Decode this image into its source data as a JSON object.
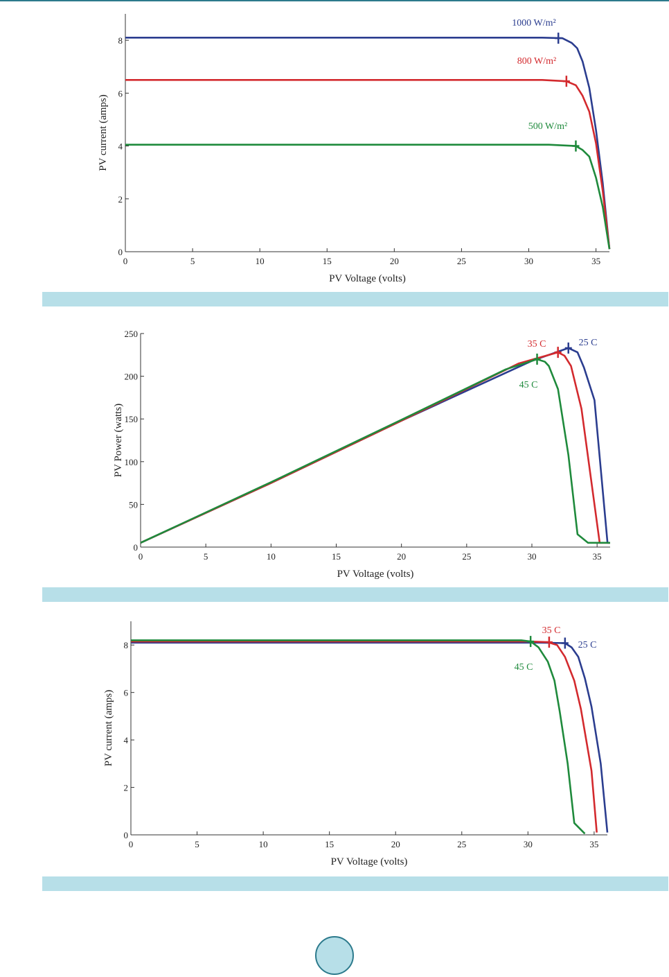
{
  "page": {
    "band_color": "#b7dfe8",
    "rule_color": "#2c7a8c"
  },
  "chart_data": [
    {
      "type": "line",
      "xlabel": "PV Voltage (volts)",
      "ylabel": "PV current (amps)",
      "xlim": [
        0,
        36
      ],
      "ylim": [
        0,
        9
      ],
      "xticks": [
        0,
        5,
        10,
        15,
        20,
        25,
        30,
        35
      ],
      "yticks": [
        0,
        2,
        4,
        6,
        8
      ],
      "series": [
        {
          "name": "1000 W/m²",
          "color": "#2b3d8f",
          "points": [
            [
              0,
              8.1
            ],
            [
              31,
              8.1
            ],
            [
              32.5,
              8.08
            ],
            [
              33.2,
              7.9
            ],
            [
              33.6,
              7.7
            ],
            [
              34,
              7.2
            ],
            [
              34.5,
              6.2
            ],
            [
              35,
              4.6
            ],
            [
              35.5,
              2.6
            ],
            [
              36,
              0.1
            ]
          ],
          "mpp": [
            32.2,
            8.08
          ]
        },
        {
          "name": "800 W/m²",
          "color": "#d32a2e",
          "points": [
            [
              0,
              6.5
            ],
            [
              31,
              6.5
            ],
            [
              32.8,
              6.45
            ],
            [
              33.5,
              6.3
            ],
            [
              34,
              5.9
            ],
            [
              34.5,
              5.3
            ],
            [
              35,
              4.1
            ],
            [
              35.5,
              2.3
            ],
            [
              36,
              0.1
            ]
          ],
          "mpp": [
            32.8,
            6.45
          ]
        },
        {
          "name": "500 W/m²",
          "color": "#1f8a3c",
          "points": [
            [
              0,
              4.05
            ],
            [
              31.5,
              4.05
            ],
            [
              33.5,
              4.0
            ],
            [
              34,
              3.85
            ],
            [
              34.5,
              3.6
            ],
            [
              35,
              2.8
            ],
            [
              35.5,
              1.7
            ],
            [
              36,
              0.1
            ]
          ],
          "mpp": [
            33.5,
            4.0
          ]
        }
      ]
    },
    {
      "type": "line",
      "xlabel": "PV Voltage (volts)",
      "ylabel": "PV Power (watts)",
      "xlim": [
        0,
        36
      ],
      "ylim": [
        0,
        250
      ],
      "xticks": [
        0,
        5,
        10,
        15,
        20,
        25,
        30,
        35
      ],
      "yticks": [
        0,
        50,
        100,
        150,
        200,
        250
      ],
      "series": [
        {
          "name": "25 C",
          "color": "#2b3d8f",
          "points": [
            [
              0,
              5
            ],
            [
              10,
              75
            ],
            [
              20,
              148
            ],
            [
              30,
              218
            ],
            [
              32.8,
              233
            ],
            [
              33.5,
              228
            ],
            [
              34,
              210
            ],
            [
              34.8,
              172
            ],
            [
              35.8,
              5
            ],
            [
              36,
              5
            ]
          ],
          "mpp": [
            32.8,
            233
          ]
        },
        {
          "name": "35 C",
          "color": "#d32a2e",
          "points": [
            [
              0,
              5
            ],
            [
              10,
              75
            ],
            [
              20,
              148
            ],
            [
              29,
              215
            ],
            [
              32,
              228
            ],
            [
              32.5,
              224
            ],
            [
              33,
              212
            ],
            [
              33.8,
              162
            ],
            [
              35.2,
              5
            ],
            [
              36,
              5
            ]
          ],
          "mpp": [
            32.0,
            228
          ]
        },
        {
          "name": "45 C",
          "color": "#1f8a3c",
          "points": [
            [
              0,
              5
            ],
            [
              10,
              76
            ],
            [
              20,
              149
            ],
            [
              28,
              208
            ],
            [
              30.4,
              220
            ],
            [
              31,
              217
            ],
            [
              31.3,
              212
            ],
            [
              32,
              185
            ],
            [
              32.8,
              108
            ],
            [
              33.5,
              15
            ],
            [
              34.3,
              5
            ],
            [
              36,
              5
            ]
          ],
          "mpp": [
            30.4,
            220
          ]
        }
      ]
    },
    {
      "type": "line",
      "xlabel": "PV Voltage (volts)",
      "ylabel": "PV current (amps)",
      "xlim": [
        0,
        36
      ],
      "ylim": [
        0,
        9
      ],
      "xticks": [
        0,
        5,
        10,
        15,
        20,
        25,
        30,
        35
      ],
      "yticks": [
        0,
        2,
        4,
        6,
        8
      ],
      "series": [
        {
          "name": "25 C",
          "color": "#2b3d8f",
          "points": [
            [
              0,
              8.1
            ],
            [
              31,
              8.1
            ],
            [
              32.8,
              8.08
            ],
            [
              33.3,
              7.9
            ],
            [
              33.8,
              7.5
            ],
            [
              34.3,
              6.6
            ],
            [
              34.8,
              5.4
            ],
            [
              35.5,
              3.0
            ],
            [
              36,
              0.1
            ]
          ],
          "mpp": [
            32.8,
            8.08
          ]
        },
        {
          "name": "35 C",
          "color": "#d32a2e",
          "points": [
            [
              0,
              8.15
            ],
            [
              30,
              8.15
            ],
            [
              31.5,
              8.12
            ],
            [
              32.2,
              8.0
            ],
            [
              32.8,
              7.5
            ],
            [
              33.5,
              6.5
            ],
            [
              34,
              5.3
            ],
            [
              34.8,
              2.7
            ],
            [
              35.2,
              0.1
            ]
          ],
          "mpp": [
            31.6,
            8.12
          ]
        },
        {
          "name": "45 C",
          "color": "#1f8a3c",
          "points": [
            [
              0,
              8.2
            ],
            [
              29.5,
              8.2
            ],
            [
              30.2,
              8.15
            ],
            [
              30.8,
              7.9
            ],
            [
              31.5,
              7.3
            ],
            [
              32,
              6.5
            ],
            [
              32.4,
              5.2
            ],
            [
              33,
              3.0
            ],
            [
              33.5,
              0.5
            ],
            [
              34.3,
              0.05
            ]
          ],
          "mpp": [
            30.2,
            8.15
          ]
        }
      ]
    }
  ],
  "labels": {
    "chart1": [
      "1000 W/m²",
      "800 W/m²",
      "500 W/m²"
    ],
    "chart2": [
      "25 C",
      "35 C",
      "45 C"
    ],
    "chart3": [
      "25 C",
      "35 C",
      "45 C"
    ]
  }
}
